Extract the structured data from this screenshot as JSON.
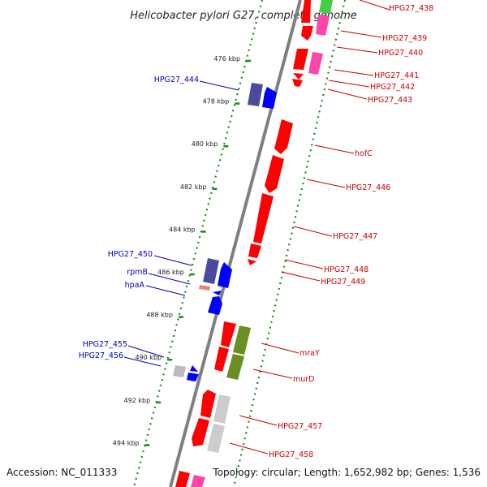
{
  "title": "Helicobacter pylori G27, complete genome",
  "accession": "Accession: NC_011333",
  "topology": "Topology: circular; Length: 1,652,982 bp; Genes: 1,536",
  "colors": {
    "backbone": "#7f7f7f",
    "dotted_track": "#1a8a1a",
    "forward_label": "#cc0000",
    "reverse_label": "#0000bb",
    "gene_red": "#ff0000",
    "gene_blue": "#0000ff",
    "gene_navy": "#4b4b9c",
    "gene_pink": "#ff44aa",
    "gene_light_pink": "#f08080",
    "gene_olive": "#6b8e23",
    "gene_grey": "#bbbbbb"
  },
  "ticks": [
    {
      "kbp": 476,
      "label": "476 kbp"
    },
    {
      "kbp": 478,
      "label": "478 kbp"
    },
    {
      "kbp": 480,
      "label": "480 kbp"
    },
    {
      "kbp": 482,
      "label": "482 kbp"
    },
    {
      "kbp": 484,
      "label": "484 kbp"
    },
    {
      "kbp": 486,
      "label": "486 kbp"
    },
    {
      "kbp": 488,
      "label": "488 kbp"
    },
    {
      "kbp": 490,
      "label": "490 kbp"
    },
    {
      "kbp": 492,
      "label": "492 kbp"
    },
    {
      "kbp": 494,
      "label": "494 kbp"
    }
  ],
  "forward_labels": [
    {
      "label": "HPG27_438",
      "kbp": 474.3
    },
    {
      "label": "HPG27_439",
      "kbp": 475.1
    },
    {
      "label": "HPG27_440",
      "kbp": 475.9
    },
    {
      "label": "HPG27_441",
      "kbp": 476.1
    },
    {
      "label": "HPG27_442",
      "kbp": 477.0
    },
    {
      "label": "HPG27_443",
      "kbp": 477.3
    },
    {
      "label": "hofC",
      "kbp": 479.6
    },
    {
      "label": "HPG27_446",
      "kbp": 481.8
    },
    {
      "label": "HPG27_447",
      "kbp": 484.1
    },
    {
      "label": "HPG27_448",
      "kbp": 485.5
    },
    {
      "label": "HPG27_449",
      "kbp": 485.8
    },
    {
      "label": "mraY",
      "kbp": 489.3
    },
    {
      "label": "murD",
      "kbp": 490.1
    },
    {
      "label": "HPG27_457",
      "kbp": 492.5
    },
    {
      "label": "HPG27_458",
      "kbp": 494.0
    }
  ],
  "reverse_labels": [
    {
      "label": "HPG27_444",
      "kbp": 477.6
    },
    {
      "label": "HPG27_450",
      "kbp": 485.6
    },
    {
      "label": "rpmB",
      "kbp": 486.8
    },
    {
      "label": "hpaA",
      "kbp": 487.3
    },
    {
      "label": "HPG27_455",
      "kbp": 490.2
    },
    {
      "label": "HPG27_456",
      "kbp": 490.5
    }
  ]
}
